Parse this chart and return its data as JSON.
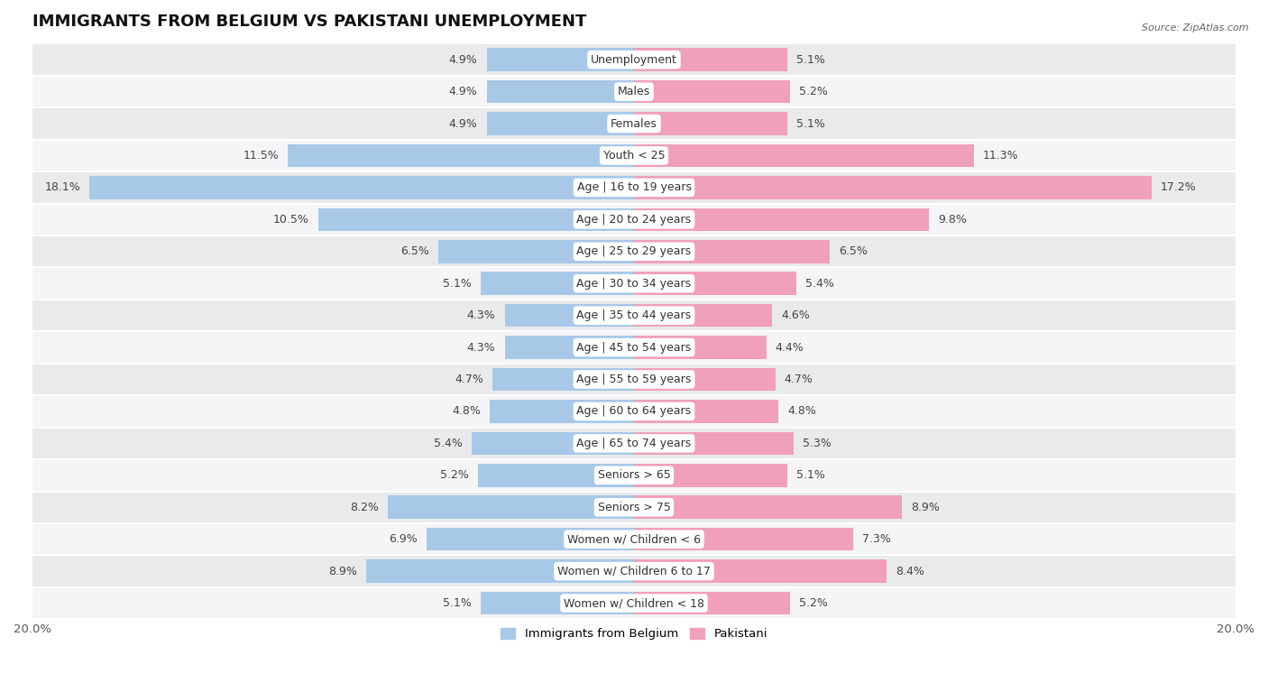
{
  "title": "IMMIGRANTS FROM BELGIUM VS PAKISTANI UNEMPLOYMENT",
  "source": "Source: ZipAtlas.com",
  "categories": [
    "Unemployment",
    "Males",
    "Females",
    "Youth < 25",
    "Age | 16 to 19 years",
    "Age | 20 to 24 years",
    "Age | 25 to 29 years",
    "Age | 30 to 34 years",
    "Age | 35 to 44 years",
    "Age | 45 to 54 years",
    "Age | 55 to 59 years",
    "Age | 60 to 64 years",
    "Age | 65 to 74 years",
    "Seniors > 65",
    "Seniors > 75",
    "Women w/ Children < 6",
    "Women w/ Children 6 to 17",
    "Women w/ Children < 18"
  ],
  "belgium_values": [
    4.9,
    4.9,
    4.9,
    11.5,
    18.1,
    10.5,
    6.5,
    5.1,
    4.3,
    4.3,
    4.7,
    4.8,
    5.4,
    5.2,
    8.2,
    6.9,
    8.9,
    5.1
  ],
  "pakistani_values": [
    5.1,
    5.2,
    5.1,
    11.3,
    17.2,
    9.8,
    6.5,
    5.4,
    4.6,
    4.4,
    4.7,
    4.8,
    5.3,
    5.1,
    8.9,
    7.3,
    8.4,
    5.2
  ],
  "belgium_color": "#a8c8e8",
  "pakistani_color": "#f0a0b8",
  "belgium_label": "Immigrants from Belgium",
  "pakistani_label": "Pakistani",
  "xlim": 20.0,
  "row_color_even": "#e8eaec",
  "row_color_odd": "#f5f5f7",
  "bar_background_color": "#ffffff",
  "title_fontsize": 13,
  "label_fontsize": 9,
  "tick_fontsize": 9.5,
  "bar_height": 0.72
}
